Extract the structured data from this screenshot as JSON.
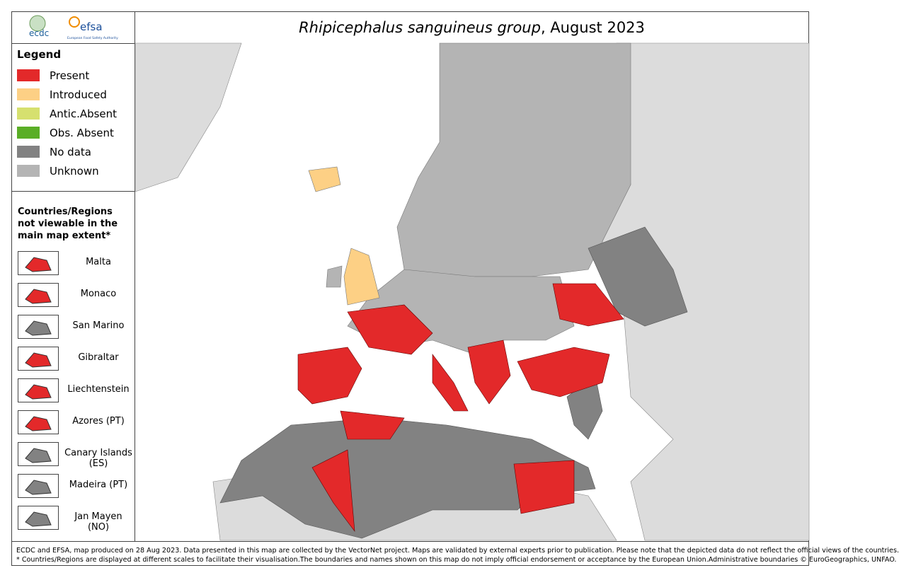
{
  "header": {
    "title_species": "Rhipicephalus sanguineus group",
    "title_date": ", August 2023"
  },
  "logos": {
    "ecdc": "ecdc",
    "efsa": "efsa",
    "efsa_subtitle": "European Food Safety Authority"
  },
  "legend": {
    "title": "Legend",
    "items": [
      {
        "label": "Present",
        "color": "#e3292a"
      },
      {
        "label": "Introduced",
        "color": "#fdd085"
      },
      {
        "label": "Antic.Absent",
        "color": "#d6e06f"
      },
      {
        "label": "Obs. Absent",
        "color": "#5aae27"
      },
      {
        "label": "No data",
        "color": "#828282"
      },
      {
        "label": "Unknown",
        "color": "#b4b4b4"
      }
    ]
  },
  "insets": {
    "title": "Countries/Regions not viewable in the main map extent*",
    "items": [
      "Malta",
      "Monaco",
      "San Marino",
      "Gibraltar",
      "Liechtenstein",
      "Azores (PT)",
      "Canary Islands (ES)",
      "Madeira (PT)",
      "Jan Mayen (NO)"
    ]
  },
  "footer": {
    "line1": "ECDC and EFSA, map produced on 28 Aug 2023. Data presented in this map are collected by the VectorNet project. Maps are validated by external experts prior to publication. Please note that the depicted data do not reflect the official views of the countries.",
    "line2": "* Countries/Regions are displayed at different scales to facilitate their visualisation.The boundaries and names shown on this map do not imply official endorsement or acceptance by the European Union.Administrative boundaries © EuroGeographics, UNFAO."
  }
}
